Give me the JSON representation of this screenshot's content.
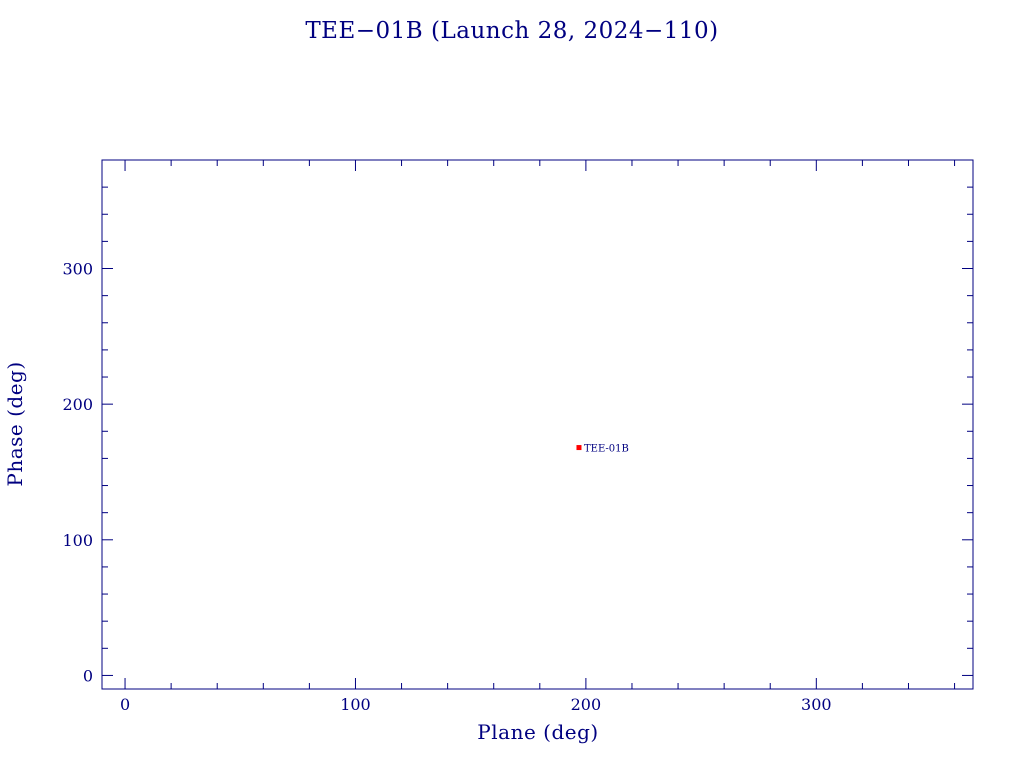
{
  "chart_data": {
    "type": "scatter",
    "title": "TEE−01B (Launch 28, 2024−110)",
    "xlabel": "Plane (deg)",
    "ylabel": "Phase (deg)",
    "xlim": [
      -10,
      368
    ],
    "ylim": [
      -10,
      380
    ],
    "xticks": [
      0,
      100,
      200,
      300
    ],
    "yticks": [
      0,
      100,
      200,
      300
    ],
    "xminor": 20,
    "yminor": 20,
    "grid": false,
    "legend": "none",
    "points": [
      {
        "label": "TEE-01B",
        "x": 197,
        "y": 168
      }
    ]
  },
  "colors": {
    "axis": "#000080",
    "point": "#ff0000",
    "text": "#000080"
  }
}
